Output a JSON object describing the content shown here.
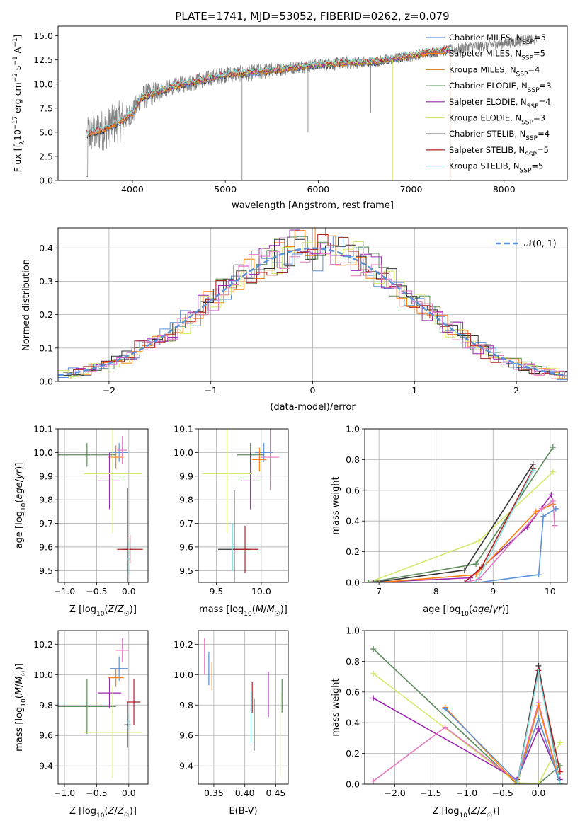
{
  "figure": {
    "title": "PLATE=1741, MJD=53052, FIBERID=0262, z=0.079"
  },
  "colors": {
    "data": "#808080",
    "Chabrier MILES": "#5b8fd6",
    "Salpeter MILES": "#ff7f0e",
    "Kroupa MILES": "#d9822b",
    "Chabrier ELODIE": "#5b8c5a",
    "Salpeter ELODIE": "#9b27b0",
    "Kroupa ELODIE": "#d4e86a",
    "Chabrier STELIB": "#333333",
    "Salpeter STELIB": "#b22222",
    "Kroupa STELIB": "#7fdcdc",
    "normal": "#5b8fd6",
    "extra_pink": "#e377c2"
  },
  "chart_data": [
    {
      "id": "spectrum",
      "type": "line",
      "title": "PLATE=1741, MJD=53052, FIBERID=0262, z=0.079",
      "xlabel": "wavelength [Angstrom, rest frame]",
      "ylabel": "Flux [f_λ 10^-17 erg cm^-2 s^-1 A^-1]",
      "xlim": [
        3200,
        8680
      ],
      "ylim": [
        0,
        16
      ],
      "xticks": [
        "4000",
        "5000",
        "6000",
        "7000",
        "8000"
      ],
      "yticks": [
        "0.0",
        "2.5",
        "5.0",
        "7.5",
        "10.0",
        "12.5",
        "15.0"
      ],
      "grid": false,
      "legend_position": "right",
      "legend": [
        {
          "name": "Chabrier MILES",
          "n": "5"
        },
        {
          "name": "Salpeter MILES",
          "n": "5"
        },
        {
          "name": "Kroupa MILES",
          "n": "4"
        },
        {
          "name": "Chabrier ELODIE",
          "n": "3"
        },
        {
          "name": "Salpeter ELODIE",
          "n": "4"
        },
        {
          "name": "Kroupa ELODIE",
          "n": "3"
        },
        {
          "name": "Chabrier STELIB",
          "n": "4"
        },
        {
          "name": "Salpeter STELIB",
          "n": "5"
        },
        {
          "name": "Kroupa STELIB",
          "n": "5"
        }
      ],
      "continuum_x": [
        3500,
        3700,
        3900,
        4000,
        4100,
        4300,
        4500,
        4800,
        5000,
        5200,
        5500,
        5800,
        6000,
        6300,
        6600,
        6800,
        7000,
        7200,
        7400,
        7600,
        7900,
        8200,
        8350
      ],
      "continuum_y": [
        4.8,
        5.3,
        6.3,
        7.0,
        8.6,
        9.3,
        9.9,
        10.5,
        11.0,
        11.1,
        11.4,
        11.8,
        12.0,
        12.2,
        12.3,
        12.6,
        12.9,
        13.3,
        13.5,
        13.8,
        14.1,
        14.5,
        14.6
      ]
    },
    {
      "id": "residuals",
      "type": "line",
      "xlabel": "(data-model)/error",
      "ylabel": "Normed distribution",
      "xlim": [
        -2.5,
        2.5
      ],
      "ylim": [
        0,
        0.46
      ],
      "xticks": [
        "−2",
        "−1",
        "0",
        "1",
        "2"
      ],
      "yticks": [
        "0.0",
        "0.1",
        "0.2",
        "0.3",
        "0.4"
      ],
      "grid": true,
      "legend": "𝒩(0, 1)",
      "legend_position": "top-right",
      "normal_mu": 0,
      "normal_sigma": 1
    },
    {
      "id": "age_vs_Z",
      "type": "scatter",
      "xlabel": "Z [log10(Z/Z☉)]",
      "ylabel": "age [log10(age/yr)]",
      "xlim": [
        -1.1,
        0.3
      ],
      "ylim": [
        9.45,
        10.1
      ],
      "xticks": [
        "−1.0",
        "−0.5",
        "0.0"
      ],
      "yticks": [
        "9.5",
        "9.6",
        "9.7",
        "9.8",
        "9.9",
        "10.0",
        "10.1"
      ],
      "grid": true,
      "points": [
        {
          "x": -0.15,
          "y": 10.0,
          "xerr": 0.14,
          "yerr": 0.04,
          "model": "Chabrier MILES"
        },
        {
          "x": -0.2,
          "y": 9.98,
          "xerr": 0.12,
          "yerr": 0.05,
          "model": "Salpeter MILES"
        },
        {
          "x": -0.1,
          "y": 10.01,
          "xerr": 0.08,
          "yerr": 0.06,
          "model": "extra_pink"
        },
        {
          "x": -0.65,
          "y": 9.99,
          "xerr": 0.45,
          "yerr": 0.05,
          "model": "Chabrier ELODIE"
        },
        {
          "x": -0.3,
          "y": 9.88,
          "xerr": 0.17,
          "yerr": 0.12,
          "model": "Salpeter ELODIE"
        },
        {
          "x": -0.25,
          "y": 9.91,
          "xerr": 0.45,
          "yerr": 0.25,
          "model": "Kroupa ELODIE"
        },
        {
          "x": -0.02,
          "y": 9.59,
          "xerr": 0.08,
          "yerr": 0.26,
          "model": "Chabrier STELIB"
        },
        {
          "x": 0.02,
          "y": 9.59,
          "xerr": 0.2,
          "yerr": 0.06,
          "model": "Salpeter STELIB"
        },
        {
          "x": 0.0,
          "y": 9.55,
          "xerr": 0.02,
          "yerr": 0.07,
          "model": "Kroupa STELIB"
        }
      ]
    },
    {
      "id": "age_vs_mass",
      "type": "scatter",
      "xlabel": "mass [log10(M/M☉)]",
      "ylabel": "",
      "xlim": [
        9.3,
        10.3
      ],
      "ylim": [
        9.45,
        10.1
      ],
      "xticks": [
        "9.5",
        "10.0"
      ],
      "yticks": [
        "9.5",
        "9.6",
        "9.7",
        "9.8",
        "9.9",
        "10.0",
        "10.1"
      ],
      "grid": true,
      "points": [
        {
          "x": 10.03,
          "y": 10.0,
          "xerr": 0.1,
          "yerr": 0.04,
          "model": "Chabrier MILES"
        },
        {
          "x": 9.98,
          "y": 9.97,
          "xerr": 0.08,
          "yerr": 0.05,
          "model": "Salpeter MILES"
        },
        {
          "x": 10.1,
          "y": 9.98,
          "xerr": 0.1,
          "yerr": 0.14,
          "model": "extra_pink"
        },
        {
          "x": 9.88,
          "y": 9.99,
          "xerr": 0.15,
          "yerr": 0.05,
          "model": "Chabrier ELODIE"
        },
        {
          "x": 9.88,
          "y": 9.88,
          "xerr": 0.1,
          "yerr": 0.12,
          "model": "Salpeter ELODIE"
        },
        {
          "x": 9.62,
          "y": 9.91,
          "xerr": 0.28,
          "yerr": 0.25,
          "model": "Kroupa ELODIE"
        },
        {
          "x": 9.7,
          "y": 9.59,
          "xerr": 0.18,
          "yerr": 0.25,
          "model": "Chabrier STELIB"
        },
        {
          "x": 9.82,
          "y": 9.59,
          "xerr": 0.15,
          "yerr": 0.1,
          "model": "Salpeter STELIB"
        },
        {
          "x": 9.68,
          "y": 9.6,
          "xerr": 0.02,
          "yerr": 0.1,
          "model": "Kroupa STELIB"
        }
      ]
    },
    {
      "id": "weight_vs_age",
      "type": "line",
      "xlabel": "age [log10(age/yr)]",
      "ylabel": "mass weight",
      "xlim": [
        6.75,
        10.3
      ],
      "ylim": [
        0,
        1.0
      ],
      "xticks": [
        "7",
        "8",
        "9",
        "10"
      ],
      "yticks": [
        "0.0",
        "0.2",
        "0.4",
        "0.6",
        "0.8",
        "1.0"
      ],
      "grid": true,
      "series": [
        {
          "model": "Kroupa ELODIE",
          "x": [
            6.82,
            8.75,
            10.05
          ],
          "y": [
            0.0,
            0.27,
            0.72
          ]
        },
        {
          "model": "Chabrier ELODIE",
          "x": [
            6.82,
            8.7,
            10.05
          ],
          "y": [
            0.0,
            0.12,
            0.88
          ]
        },
        {
          "model": "Chabrier STELIB",
          "x": [
            6.9,
            8.5,
            9.7
          ],
          "y": [
            0.0,
            0.08,
            0.77
          ]
        },
        {
          "model": "Salpeter ELODIE",
          "x": [
            6.9,
            8.6,
            9.6,
            10.02
          ],
          "y": [
            0.0,
            0.03,
            0.36,
            0.57
          ]
        },
        {
          "model": "Salpeter MILES",
          "x": [
            7.0,
            8.7,
            9.75,
            10.05
          ],
          "y": [
            0.0,
            0.05,
            0.46,
            0.51
          ]
        },
        {
          "model": "Chabrier MILES",
          "x": [
            8.55,
            8.75,
            9.8,
            9.88,
            10.1
          ],
          "y": [
            0.0,
            0.0,
            0.05,
            0.43,
            0.48
          ]
        },
        {
          "model": "Salpeter STELIB",
          "x": [
            8.5,
            8.8,
            9.7
          ],
          "y": [
            0.0,
            0.1,
            0.74
          ]
        },
        {
          "model": "Kroupa STELIB",
          "x": [
            8.55,
            8.7,
            9.7
          ],
          "y": [
            0.0,
            0.0,
            0.73
          ]
        },
        {
          "model": "extra_pink",
          "x": [
            8.5,
            8.75,
            9.85,
            10.05,
            10.08
          ],
          "y": [
            0.0,
            0.02,
            0.48,
            0.53,
            0.37
          ]
        }
      ]
    },
    {
      "id": "mass_vs_Z",
      "type": "scatter",
      "xlabel": "Z [log10(Z/Z☉)]",
      "ylabel": "mass [log10(M/M☉)]",
      "xlim": [
        -1.1,
        0.3
      ],
      "ylim": [
        9.28,
        10.29
      ],
      "xticks": [
        "−1.0",
        "−0.5",
        "0.0"
      ],
      "yticks": [
        "9.4",
        "9.6",
        "9.8",
        "10.0",
        "10.2"
      ],
      "grid": true,
      "points": [
        {
          "x": -0.15,
          "y": 10.04,
          "xerr": 0.14,
          "yerr": 0.08,
          "model": "Chabrier MILES"
        },
        {
          "x": -0.2,
          "y": 9.98,
          "xerr": 0.12,
          "yerr": 0.06,
          "model": "Salpeter MILES"
        },
        {
          "x": -0.1,
          "y": 10.16,
          "xerr": 0.1,
          "yerr": 0.08,
          "model": "extra_pink"
        },
        {
          "x": -0.65,
          "y": 9.79,
          "xerr": 0.45,
          "yerr": 0.18,
          "model": "Chabrier ELODIE"
        },
        {
          "x": -0.3,
          "y": 9.88,
          "xerr": 0.18,
          "yerr": 0.1,
          "model": "Salpeter ELODIE"
        },
        {
          "x": -0.25,
          "y": 9.62,
          "xerr": 0.45,
          "yerr": 0.3,
          "model": "Kroupa ELODIE"
        },
        {
          "x": -0.02,
          "y": 9.67,
          "xerr": 0.05,
          "yerr": 0.15,
          "model": "Chabrier STELIB"
        },
        {
          "x": 0.08,
          "y": 9.82,
          "xerr": 0.1,
          "yerr": 0.15,
          "model": "Salpeter STELIB"
        },
        {
          "x": 0.0,
          "y": 9.69,
          "xerr": 0.02,
          "yerr": 0.05,
          "model": "Kroupa STELIB"
        }
      ]
    },
    {
      "id": "mass_vs_EBV",
      "type": "scatter",
      "xlabel": "E(B-V)",
      "ylabel": "",
      "xlim": [
        0.325,
        0.47
      ],
      "ylim": [
        9.28,
        10.29
      ],
      "xticks": [
        "0.35",
        "0.40",
        "0.45"
      ],
      "yticks": [
        "9.4",
        "9.6",
        "9.8",
        "10.0",
        "10.2"
      ],
      "grid": true,
      "points": [
        {
          "x": 0.342,
          "y": 10.04,
          "yerr": 0.11,
          "model": "Chabrier MILES"
        },
        {
          "x": 0.347,
          "y": 9.99,
          "yerr": 0.09,
          "model": "Salpeter MILES"
        },
        {
          "x": 0.335,
          "y": 10.12,
          "yerr": 0.12,
          "model": "extra_pink"
        },
        {
          "x": 0.46,
          "y": 9.86,
          "yerr": 0.11,
          "model": "Chabrier ELODIE"
        },
        {
          "x": 0.438,
          "y": 9.87,
          "yerr": 0.15,
          "model": "Salpeter ELODIE"
        },
        {
          "x": 0.457,
          "y": 9.6,
          "yerr": 0.28,
          "model": "Kroupa ELODIE"
        },
        {
          "x": 0.415,
          "y": 9.67,
          "yerr": 0.17,
          "model": "Chabrier STELIB"
        },
        {
          "x": 0.412,
          "y": 9.85,
          "yerr": 0.1,
          "model": "Salpeter STELIB"
        },
        {
          "x": 0.41,
          "y": 9.72,
          "yerr": 0.17,
          "model": "Kroupa STELIB"
        }
      ]
    },
    {
      "id": "weight_vs_Z",
      "type": "line",
      "xlabel": "Z [log10(Z/Z☉)]",
      "ylabel": "mass weight",
      "xlim": [
        -2.42,
        0.4
      ],
      "ylim": [
        0,
        1.0
      ],
      "xticks": [
        "−2.0",
        "−1.5",
        "−1.0",
        "−0.5",
        "0.0"
      ],
      "yticks": [
        "0.0",
        "0.2",
        "0.4",
        "0.6",
        "0.8",
        "1.0"
      ],
      "grid": true,
      "series": [
        {
          "model": "Chabrier ELODIE",
          "x": [
            -2.3,
            -0.3,
            0.0,
            0.3
          ],
          "y": [
            0.88,
            0.0,
            0.0,
            0.12
          ]
        },
        {
          "model": "Kroupa ELODIE",
          "x": [
            -2.3,
            -0.3,
            0.0,
            0.3
          ],
          "y": [
            0.72,
            0.01,
            0.0,
            0.27
          ]
        },
        {
          "model": "Salpeter ELODIE",
          "x": [
            -2.3,
            -0.3,
            0.0,
            0.3
          ],
          "y": [
            0.56,
            0.03,
            0.36,
            0.03
          ]
        },
        {
          "model": "extra_pink",
          "x": [
            -2.3,
            -1.3,
            -0.3,
            0.0,
            0.3
          ],
          "y": [
            0.02,
            0.37,
            0.02,
            0.53,
            0.0
          ]
        },
        {
          "model": "Salpeter MILES",
          "x": [
            -1.3,
            -0.3,
            0.0,
            0.3
          ],
          "y": [
            0.5,
            0.0,
            0.51,
            0.0
          ]
        },
        {
          "model": "Chabrier MILES",
          "x": [
            -1.3,
            -0.3,
            0.0,
            0.3
          ],
          "y": [
            0.49,
            0.02,
            0.43,
            0.0
          ]
        },
        {
          "model": "Chabrier STELIB",
          "x": [
            -0.3,
            0.0,
            0.3
          ],
          "y": [
            0.0,
            0.77,
            0.0
          ]
        },
        {
          "model": "Salpeter STELIB",
          "x": [
            -0.3,
            0.0,
            0.3
          ],
          "y": [
            0.0,
            0.74,
            0.08
          ]
        },
        {
          "model": "Kroupa STELIB",
          "x": [
            -0.3,
            0.0,
            0.3
          ],
          "y": [
            0.0,
            0.73,
            0.0
          ]
        }
      ]
    }
  ]
}
